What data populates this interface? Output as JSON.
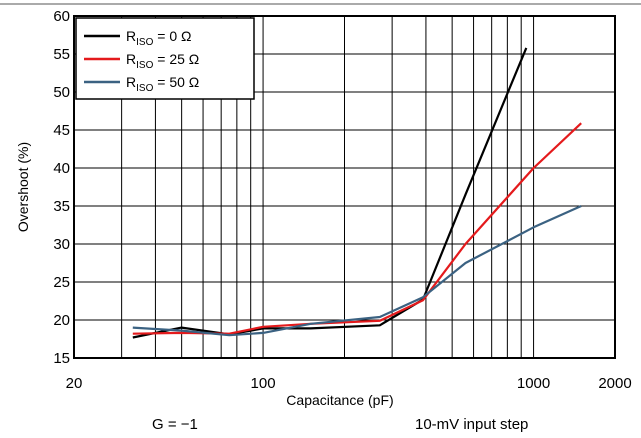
{
  "chart_data": {
    "type": "line",
    "xlabel": "Capacitance (pF)",
    "ylabel": "Overshoot (%)",
    "x_scale": "log",
    "xlim": [
      20,
      2000
    ],
    "ylim": [
      15,
      60
    ],
    "x_tick_labels": [
      {
        "value": 20,
        "label": "20"
      },
      {
        "value": 100,
        "label": "100"
      },
      {
        "value": 1000,
        "label": "1000"
      },
      {
        "value": 2000,
        "label": "2000"
      }
    ],
    "y_ticks": [
      15,
      20,
      25,
      30,
      35,
      40,
      45,
      50,
      55,
      60
    ],
    "grid": true,
    "legend_position": "top-left",
    "legend": [
      {
        "sub_base": "R",
        "sub": "ISO",
        "rest": " = 0 Ω"
      },
      {
        "sub_base": "R",
        "sub": "ISO",
        "rest": " = 25 Ω"
      },
      {
        "sub_base": "R",
        "sub": "ISO",
        "rest": " = 50 Ω"
      }
    ],
    "series": [
      {
        "color": "#000000",
        "x": [
          33,
          50,
          75,
          100,
          150,
          270,
          390,
          560,
          940
        ],
        "y": [
          17.7,
          19.0,
          18.1,
          18.9,
          18.9,
          19.3,
          22.7,
          36.5,
          55.8
        ]
      },
      {
        "color": "#e41a1c",
        "x": [
          33,
          50,
          75,
          100,
          150,
          270,
          390,
          560,
          1000,
          1500
        ],
        "y": [
          18.2,
          18.3,
          18.2,
          19.1,
          19.5,
          19.9,
          22.6,
          30.0,
          40.0,
          45.9
        ]
      },
      {
        "color": "#3b6282",
        "x": [
          33,
          50,
          75,
          100,
          150,
          270,
          390,
          560,
          1000,
          1500
        ],
        "y": [
          19.0,
          18.6,
          18.0,
          18.3,
          19.5,
          20.4,
          23.0,
          27.5,
          32.2,
          35.0
        ]
      }
    ]
  },
  "notes": {
    "gain": "G = −1",
    "input": "10-mV input step"
  }
}
